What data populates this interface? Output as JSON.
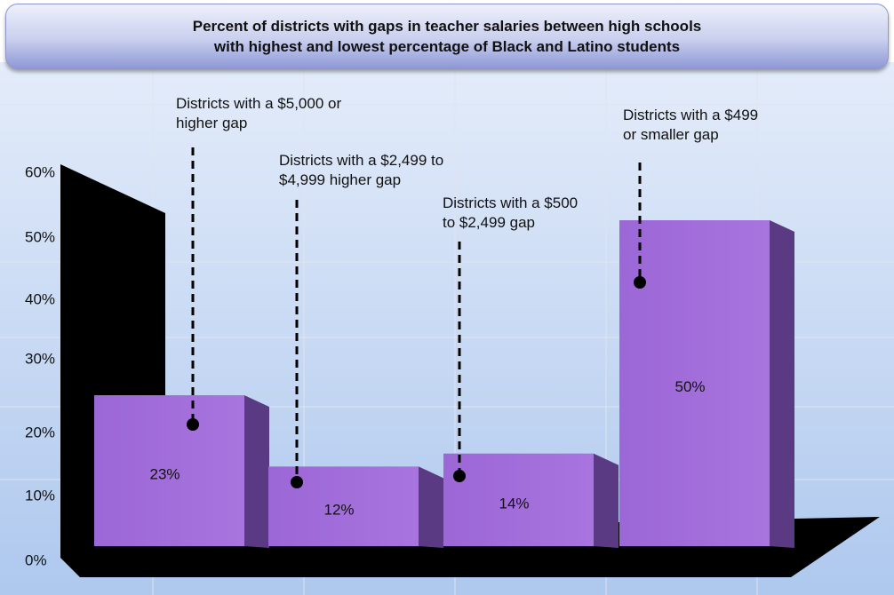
{
  "chart_data": {
    "type": "bar",
    "title_lines": [
      "Percent of districts with gaps in teacher salaries between high schools",
      "with highest and lowest percentage of Black and Latino students"
    ],
    "categories": [
      [
        "Districts with a $5,000 or",
        "higher gap"
      ],
      [
        "Districts with a $2,499 to",
        "$4,999 higher gap"
      ],
      [
        "Districts with a $500",
        "to $2,499 gap"
      ],
      [
        "Districts with a $499",
        "or smaller gap"
      ]
    ],
    "values": [
      23,
      12,
      14,
      50
    ],
    "value_labels": [
      "23%",
      "12%",
      "14%",
      "50%"
    ],
    "y_ticks": [
      "0%",
      "10%",
      "20%",
      "30%",
      "40%",
      "50%",
      "60%"
    ],
    "ylim": [
      0,
      60
    ],
    "grid": true,
    "three_d": true,
    "colors": {
      "bar_front": "#9f6ad8",
      "bar_side": "#5a3a82",
      "bar_top": "#b78ae6",
      "plot_background": "#ccdcf4",
      "floor": "#000000",
      "wall": "#000000",
      "gridline": "#dfe4ee",
      "leader_line": "#000000"
    }
  }
}
